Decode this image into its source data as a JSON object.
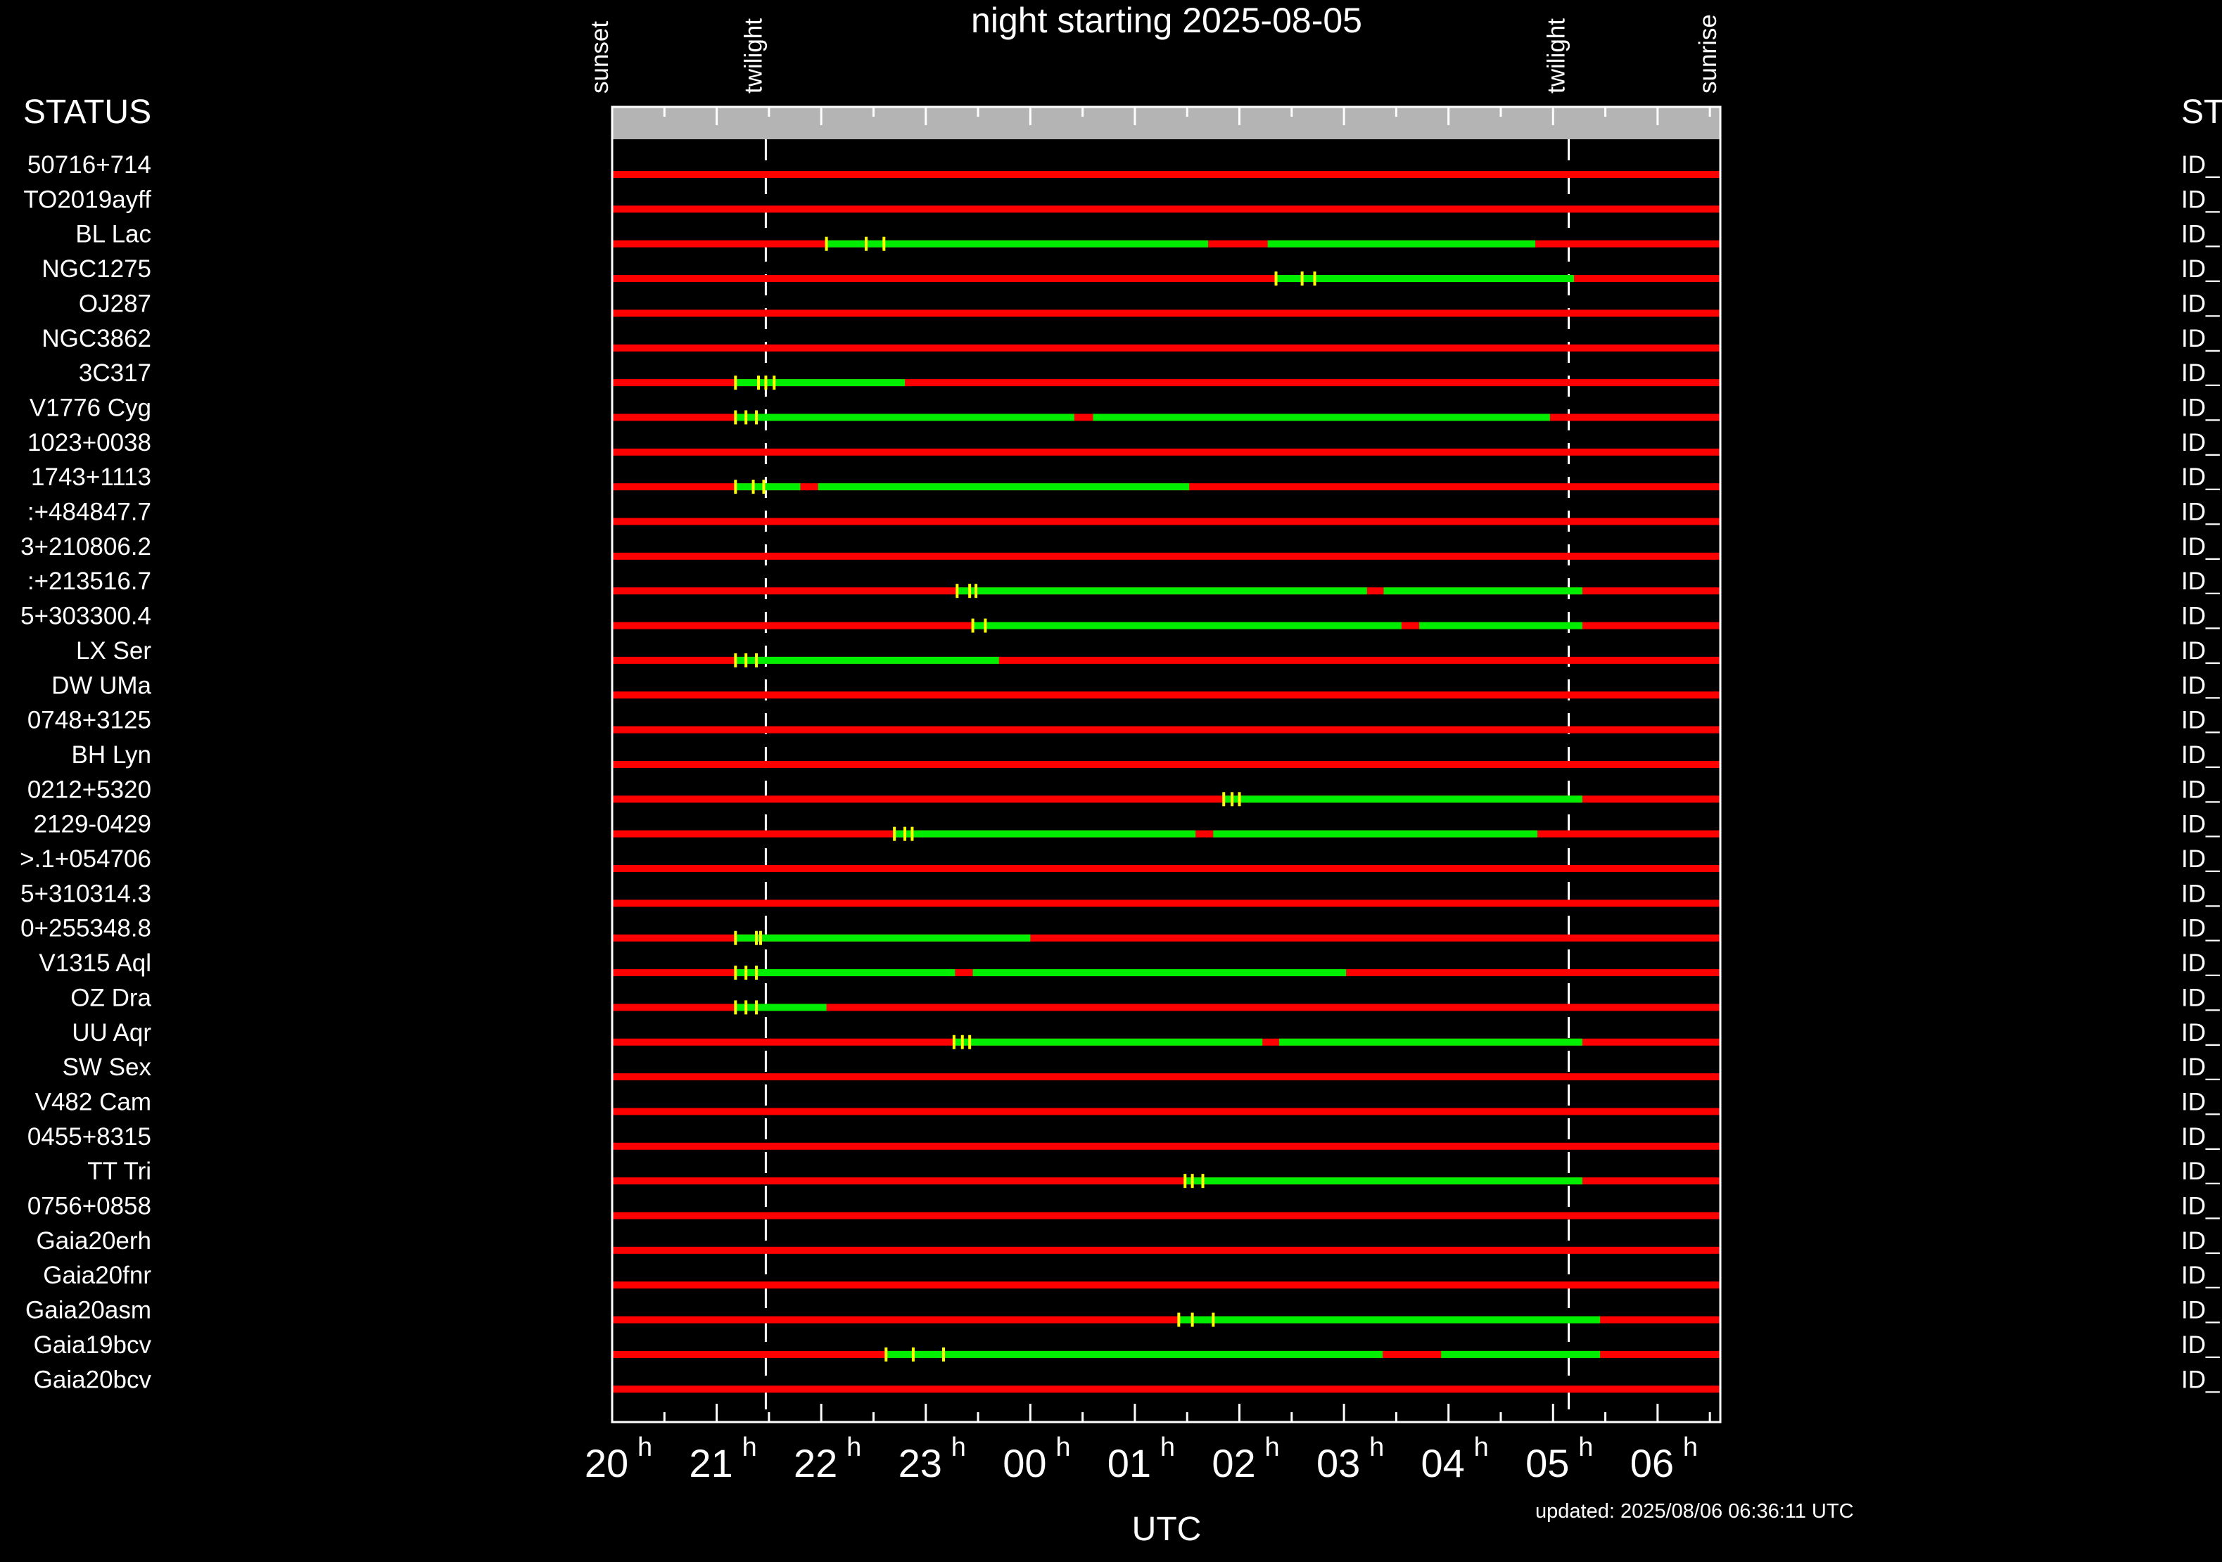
{
  "title": "night starting 2025-08-05",
  "status_header": "STATUS",
  "status_header_right": "ST",
  "xlabel": "UTC",
  "updated": "updated: 2025/08/06 06:36:11 UTC",
  "colors": {
    "background": "#000000",
    "unobservable": "#ff0000",
    "observable": "#00ee00",
    "marker": "#ffff00",
    "header_bar": "#b4b4b4",
    "axes": "#ffffff"
  },
  "chart_data": {
    "type": "timeline",
    "title": "night starting 2025-08-05",
    "xlabel": "UTC",
    "ylabel": "",
    "xlim_hours": [
      20.0,
      30.6
    ],
    "x_ticks": [
      {
        "h": 20,
        "label": "20"
      },
      {
        "h": 21,
        "label": "21"
      },
      {
        "h": 22,
        "label": "22"
      },
      {
        "h": 23,
        "label": "23"
      },
      {
        "h": 24,
        "label": "00"
      },
      {
        "h": 25,
        "label": "01"
      },
      {
        "h": 26,
        "label": "02"
      },
      {
        "h": 27,
        "label": "03"
      },
      {
        "h": 28,
        "label": "04"
      },
      {
        "h": 29,
        "label": "05"
      },
      {
        "h": 30,
        "label": "06"
      }
    ],
    "tick_unit": "h",
    "events": [
      {
        "label": "sunset",
        "h": 20.0,
        "line": false
      },
      {
        "label": "twilight",
        "h": 21.47,
        "line": true
      },
      {
        "label": "twilight",
        "h": 29.15,
        "line": true
      },
      {
        "label": "sunrise",
        "h": 30.6,
        "line": false
      }
    ],
    "targets": [
      {
        "name": "50716+714",
        "status": "ID_",
        "green": [],
        "markers": []
      },
      {
        "name": "TO2019ayff",
        "status": "ID_",
        "green": [],
        "markers": []
      },
      {
        "name": "BL Lac",
        "status": "ID_",
        "green": [
          [
            22.05,
            25.7
          ],
          [
            26.27,
            28.83
          ]
        ],
        "markers": [
          22.05,
          22.43,
          22.6
        ]
      },
      {
        "name": "NGC1275",
        "status": "ID_",
        "green": [
          [
            26.35,
            29.2
          ]
        ],
        "markers": [
          26.35,
          26.6,
          26.72
        ]
      },
      {
        "name": "OJ287",
        "status": "ID_",
        "green": [],
        "markers": []
      },
      {
        "name": "NGC3862",
        "status": "ID_",
        "green": [],
        "markers": []
      },
      {
        "name": "3C317",
        "status": "ID_",
        "green": [
          [
            21.18,
            22.8
          ]
        ],
        "markers": [
          21.18,
          21.4,
          21.47,
          21.55
        ]
      },
      {
        "name": "V1776 Cyg",
        "status": "ID_",
        "green": [
          [
            21.18,
            24.42
          ],
          [
            24.6,
            28.97
          ]
        ],
        "markers": [
          21.18,
          21.28,
          21.38
        ]
      },
      {
        "name": "1023+0038",
        "status": "ID_",
        "green": [],
        "markers": []
      },
      {
        "name": "1743+1113",
        "status": "ID_",
        "green": [
          [
            21.18,
            21.8
          ],
          [
            21.97,
            25.52
          ]
        ],
        "markers": [
          21.18,
          21.35,
          21.45
        ]
      },
      {
        "name": ":+484847.7",
        "status": "ID_",
        "green": [],
        "markers": []
      },
      {
        "name": "3+210806.2",
        "status": "ID_",
        "green": [],
        "markers": []
      },
      {
        "name": ":+213516.7",
        "status": "ID_",
        "green": [
          [
            23.3,
            27.22
          ],
          [
            27.38,
            29.28
          ]
        ],
        "markers": [
          23.3,
          23.42,
          23.48
        ]
      },
      {
        "name": "5+303300.4",
        "status": "ID_",
        "green": [
          [
            23.45,
            27.55
          ],
          [
            27.72,
            29.28
          ]
        ],
        "markers": [
          23.45,
          23.57
        ]
      },
      {
        "name": "LX Ser",
        "status": "ID_",
        "green": [
          [
            21.18,
            23.7
          ]
        ],
        "markers": [
          21.18,
          21.28,
          21.38
        ]
      },
      {
        "name": "DW UMa",
        "status": "ID_",
        "green": [],
        "markers": []
      },
      {
        "name": "0748+3125",
        "status": "ID_",
        "green": [],
        "markers": []
      },
      {
        "name": "BH Lyn",
        "status": "ID_",
        "green": [],
        "markers": []
      },
      {
        "name": "0212+5320",
        "status": "ID_",
        "green": [
          [
            25.85,
            29.28
          ]
        ],
        "markers": [
          25.85,
          25.93,
          26.0
        ]
      },
      {
        "name": "2129-0429",
        "status": "ID_",
        "green": [
          [
            22.7,
            25.58
          ],
          [
            25.75,
            28.85
          ]
        ],
        "markers": [
          22.7,
          22.8,
          22.87
        ]
      },
      {
        "name": ">.1+054706",
        "status": "ID_",
        "green": [],
        "markers": []
      },
      {
        "name": "5+310314.3",
        "status": "ID_",
        "green": [],
        "markers": []
      },
      {
        "name": "0+255348.8",
        "status": "ID_",
        "green": [
          [
            21.18,
            24.0
          ]
        ],
        "markers": [
          21.18,
          21.38,
          21.42
        ]
      },
      {
        "name": "V1315 Aql",
        "status": "ID_",
        "green": [
          [
            21.18,
            23.28
          ],
          [
            23.45,
            27.02
          ]
        ],
        "markers": [
          21.18,
          21.28,
          21.38
        ]
      },
      {
        "name": "OZ Dra",
        "status": "ID_",
        "green": [
          [
            21.18,
            22.05
          ]
        ],
        "markers": [
          21.18,
          21.28,
          21.38
        ]
      },
      {
        "name": "UU Aqr",
        "status": "ID_",
        "green": [
          [
            23.27,
            26.22
          ],
          [
            26.38,
            29.28
          ]
        ],
        "markers": [
          23.27,
          23.35,
          23.42
        ]
      },
      {
        "name": "SW Sex",
        "status": "ID_",
        "green": [],
        "markers": []
      },
      {
        "name": "V482 Cam",
        "status": "ID_",
        "green": [],
        "markers": []
      },
      {
        "name": "0455+8315",
        "status": "ID_",
        "green": [],
        "markers": []
      },
      {
        "name": "TT Tri",
        "status": "ID_",
        "green": [
          [
            25.48,
            29.28
          ]
        ],
        "markers": [
          25.48,
          25.55,
          25.65
        ]
      },
      {
        "name": "0756+0858",
        "status": "ID_",
        "green": [],
        "markers": []
      },
      {
        "name": "Gaia20erh",
        "status": "ID_",
        "green": [],
        "markers": []
      },
      {
        "name": "Gaia20fnr",
        "status": "ID_",
        "green": [],
        "markers": []
      },
      {
        "name": "Gaia20asm",
        "status": "ID_",
        "green": [
          [
            25.42,
            29.45
          ]
        ],
        "markers": [
          25.42,
          25.55,
          25.75
        ]
      },
      {
        "name": "Gaia19bcv",
        "status": "ID_",
        "green": [
          [
            22.62,
            27.37
          ],
          [
            27.93,
            29.45
          ]
        ],
        "markers": [
          22.62,
          22.88,
          23.17
        ]
      },
      {
        "name": "Gaia20bcv",
        "status": "ID_",
        "green": [],
        "markers": []
      }
    ]
  }
}
